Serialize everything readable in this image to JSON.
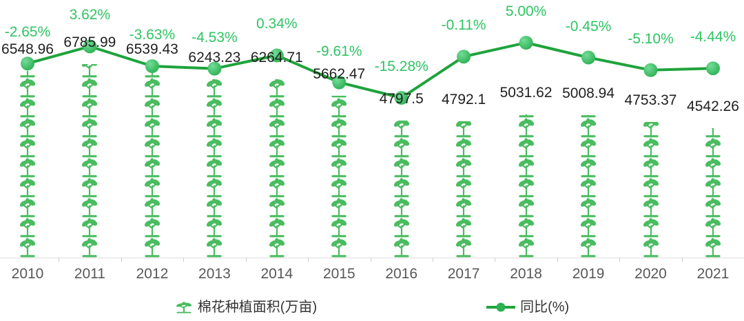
{
  "chart_data": {
    "type": "pictorial-bar-line-combo",
    "title": "",
    "categories": [
      "2010",
      "2011",
      "2012",
      "2013",
      "2014",
      "2015",
      "2016",
      "2017",
      "2018",
      "2019",
      "2020",
      "2021"
    ],
    "series": [
      {
        "name": "棉花种植面积(万亩)",
        "type": "pictorialBar",
        "symbol": "seedling",
        "unit_per_symbol": 700,
        "values": [
          6548.96,
          6785.99,
          6539.43,
          6243.23,
          6264.71,
          5662.47,
          4797.5,
          4792.1,
          5031.62,
          5008.94,
          4753.37,
          4542.26
        ],
        "labels": [
          "6548.96",
          "6785.99",
          "6539.43",
          "6243.23",
          "6264.71",
          "5662.47",
          "4797.5",
          "4792.1",
          "5031.62",
          "5008.94",
          "4753.37",
          "4542.26"
        ]
      },
      {
        "name": "同比(%)",
        "type": "line",
        "values": [
          -2.65,
          3.62,
          -3.63,
          -4.53,
          0.34,
          -9.61,
          -15.28,
          -0.11,
          5.0,
          -0.45,
          -5.1,
          -4.44
        ],
        "labels": [
          "-2.65%",
          "3.62%",
          "-3.63%",
          "-4.53%",
          "0.34%",
          "-9.61%",
          "-15.28%",
          "-0.11%",
          "5.00%",
          "-0.45%",
          "-5.10%",
          "-4.44%"
        ]
      }
    ],
    "xlabel": "",
    "ylabel": "",
    "y2lim": [
      -17,
      6
    ],
    "grid": false,
    "legend_position": "bottom"
  },
  "legend": {
    "items": [
      {
        "label": "棉花种植面积(万亩)",
        "icon": "seedling-icon"
      },
      {
        "label": "同比(%)",
        "icon": "line-marker-icon"
      }
    ]
  },
  "colors": {
    "line": "#1fa33c",
    "marker_light": "#74dc98",
    "marker_dark": "#2cb052",
    "pct_label": "#2ec463",
    "value_label": "#1f1f1f",
    "axis_label": "#585858",
    "axis_line": "#dedede",
    "tick": "#cccccc",
    "seedling": "#4abc60",
    "legend_text": "#333333"
  }
}
